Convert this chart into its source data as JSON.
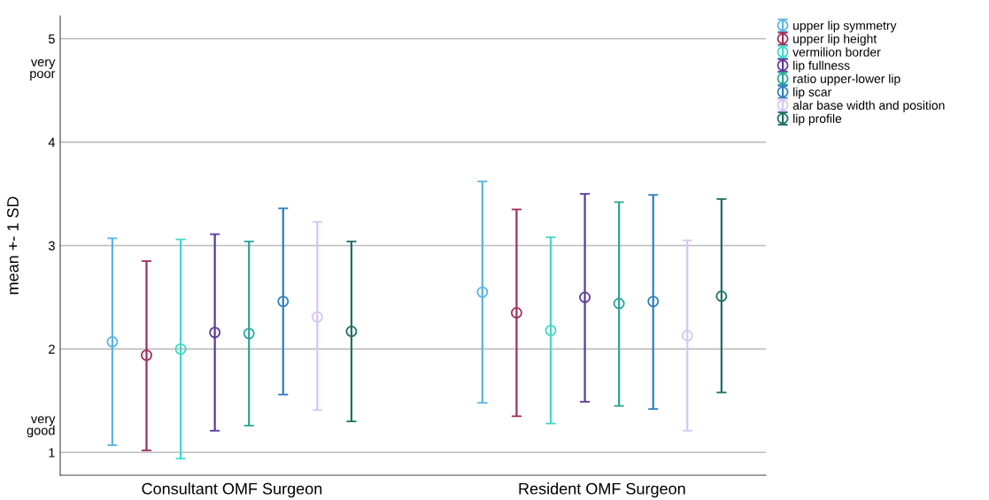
{
  "chart_data": {
    "type": "scatter",
    "ylabel": "mean +- 1 SD",
    "categories": [
      "Consultant OMF Surgeon",
      "Resident OMF Surgeon"
    ],
    "ylim": [
      0.78,
      5.22
    ],
    "yticks": [
      1,
      {
        "value": 1.27,
        "label": "very\ngood"
      },
      2,
      3,
      4,
      {
        "value": 4.72,
        "label": "very\npoor"
      },
      5
    ],
    "grid": "y",
    "legend": "top right",
    "marker": "circle",
    "series": [
      {
        "name": "upper lip symmetry",
        "color": "#5ab4e5",
        "values": [
          2.07,
          2.55
        ],
        "errors": [
          [
            1.07,
            3.07
          ],
          [
            1.48,
            3.62
          ]
        ]
      },
      {
        "name": "upper lip height",
        "color": "#a12f5b",
        "values": [
          1.94,
          2.35
        ],
        "errors": [
          [
            1.02,
            2.85
          ],
          [
            1.35,
            3.35
          ]
        ]
      },
      {
        "name": "vermilion border",
        "color": "#3fd8c8",
        "values": [
          2.0,
          2.18
        ],
        "errors": [
          [
            0.94,
            3.06
          ],
          [
            1.28,
            3.08
          ]
        ]
      },
      {
        "name": "lip fullness",
        "color": "#5b3a9c",
        "values": [
          2.16,
          2.5
        ],
        "errors": [
          [
            1.21,
            3.11
          ],
          [
            1.49,
            3.5
          ]
        ]
      },
      {
        "name": "ratio upper-lower lip",
        "color": "#2aa49a",
        "values": [
          2.15,
          2.44
        ],
        "errors": [
          [
            1.26,
            3.04
          ],
          [
            1.45,
            3.42
          ]
        ]
      },
      {
        "name": "lip scar",
        "color": "#2d7fbf",
        "values": [
          2.46,
          2.46
        ],
        "errors": [
          [
            1.56,
            3.36
          ],
          [
            1.42,
            3.49
          ]
        ]
      },
      {
        "name": "alar base width and position",
        "color": "#d6c6f2",
        "values": [
          2.31,
          2.13
        ],
        "errors": [
          [
            1.41,
            3.23
          ],
          [
            1.21,
            3.05
          ]
        ]
      },
      {
        "name": "lip profile",
        "color": "#1f6f66",
        "values": [
          2.17,
          2.51
        ],
        "errors": [
          [
            1.3,
            3.04
          ],
          [
            1.58,
            3.45
          ]
        ]
      }
    ]
  }
}
